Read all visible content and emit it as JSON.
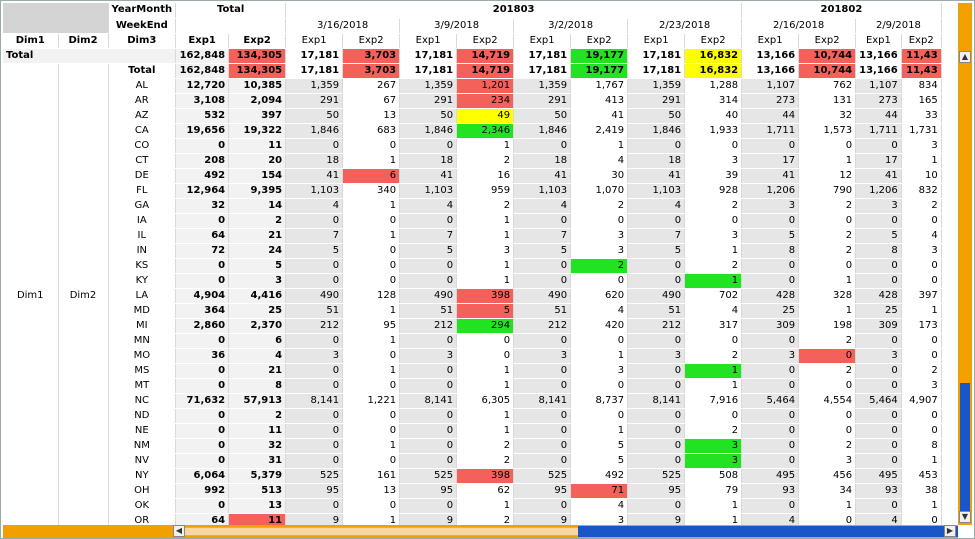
{
  "header": {
    "yearmonth_label": "YearMonth",
    "weekend_label": "WeekEnd",
    "total_label": "Total",
    "months": [
      "201803",
      "201802"
    ],
    "weeks": [
      "3/16/2018",
      "3/9/2018",
      "3/2/2018",
      "2/23/2018",
      "2/16/2018",
      "2/9/2018"
    ],
    "dim_cols": [
      "Dim1",
      "Dim2",
      "Dim3"
    ],
    "exp1": "Exp1",
    "exp2": "Exp2"
  },
  "left_labels": {
    "dim1": "Dim1",
    "dim2": "Dim2",
    "grand_total": "Total",
    "sub_total": "Total"
  },
  "totals_row": {
    "total_exp1": "162,848",
    "total_exp2": "134,305",
    "weeks": [
      [
        "17,181",
        "3,703"
      ],
      [
        "17,181",
        "14,719"
      ],
      [
        "17,181",
        "19,177"
      ],
      [
        "17,181",
        "16,832"
      ],
      [
        "13,166",
        "10,744"
      ],
      [
        "13,166",
        "11,43"
      ]
    ]
  },
  "rows": [
    {
      "state": "AL",
      "t1": "12,720",
      "t2": "10,385",
      "w": [
        [
          "1,359",
          "267"
        ],
        [
          "1,359",
          "1,201"
        ],
        [
          "1,359",
          "1,767"
        ],
        [
          "1,359",
          "1,288"
        ],
        [
          "1,107",
          "762"
        ],
        [
          "1,107",
          "834"
        ]
      ]
    },
    {
      "state": "AR",
      "t1": "3,108",
      "t2": "2,094",
      "w": [
        [
          "291",
          "67"
        ],
        [
          "291",
          "234"
        ],
        [
          "291",
          "413"
        ],
        [
          "291",
          "314"
        ],
        [
          "273",
          "131"
        ],
        [
          "273",
          "165"
        ]
      ]
    },
    {
      "state": "AZ",
      "t1": "532",
      "t2": "397",
      "w": [
        [
          "50",
          "13"
        ],
        [
          "50",
          "49"
        ],
        [
          "50",
          "41"
        ],
        [
          "50",
          "40"
        ],
        [
          "44",
          "32"
        ],
        [
          "44",
          "33"
        ]
      ]
    },
    {
      "state": "CA",
      "t1": "19,656",
      "t2": "19,322",
      "w": [
        [
          "1,846",
          "683"
        ],
        [
          "1,846",
          "2,346"
        ],
        [
          "1,846",
          "2,419"
        ],
        [
          "1,846",
          "1,933"
        ],
        [
          "1,711",
          "1,573"
        ],
        [
          "1,711",
          "1,731"
        ]
      ]
    },
    {
      "state": "CO",
      "t1": "0",
      "t2": "11",
      "w": [
        [
          "0",
          "0"
        ],
        [
          "0",
          "1"
        ],
        [
          "0",
          "1"
        ],
        [
          "0",
          "0"
        ],
        [
          "0",
          "0"
        ],
        [
          "0",
          "3"
        ]
      ]
    },
    {
      "state": "CT",
      "t1": "208",
      "t2": "20",
      "w": [
        [
          "18",
          "1"
        ],
        [
          "18",
          "2"
        ],
        [
          "18",
          "4"
        ],
        [
          "18",
          "3"
        ],
        [
          "17",
          "1"
        ],
        [
          "17",
          "1"
        ]
      ]
    },
    {
      "state": "DE",
      "t1": "492",
      "t2": "154",
      "w": [
        [
          "41",
          "6"
        ],
        [
          "41",
          "16"
        ],
        [
          "41",
          "30"
        ],
        [
          "41",
          "39"
        ],
        [
          "41",
          "12"
        ],
        [
          "41",
          "10"
        ]
      ]
    },
    {
      "state": "FL",
      "t1": "12,964",
      "t2": "9,395",
      "w": [
        [
          "1,103",
          "340"
        ],
        [
          "1,103",
          "959"
        ],
        [
          "1,103",
          "1,070"
        ],
        [
          "1,103",
          "928"
        ],
        [
          "1,206",
          "790"
        ],
        [
          "1,206",
          "832"
        ]
      ]
    },
    {
      "state": "GA",
      "t1": "32",
      "t2": "14",
      "w": [
        [
          "4",
          "1"
        ],
        [
          "4",
          "2"
        ],
        [
          "4",
          "2"
        ],
        [
          "4",
          "2"
        ],
        [
          "3",
          "2"
        ],
        [
          "3",
          "2"
        ]
      ]
    },
    {
      "state": "IA",
      "t1": "0",
      "t2": "2",
      "w": [
        [
          "0",
          "0"
        ],
        [
          "0",
          "1"
        ],
        [
          "0",
          "0"
        ],
        [
          "0",
          "0"
        ],
        [
          "0",
          "0"
        ],
        [
          "0",
          "0"
        ]
      ]
    },
    {
      "state": "IL",
      "t1": "64",
      "t2": "21",
      "w": [
        [
          "7",
          "1"
        ],
        [
          "7",
          "1"
        ],
        [
          "7",
          "3"
        ],
        [
          "7",
          "3"
        ],
        [
          "5",
          "2"
        ],
        [
          "5",
          "4"
        ]
      ]
    },
    {
      "state": "IN",
      "t1": "72",
      "t2": "24",
      "w": [
        [
          "5",
          "0"
        ],
        [
          "5",
          "3"
        ],
        [
          "5",
          "3"
        ],
        [
          "5",
          "1"
        ],
        [
          "8",
          "2"
        ],
        [
          "8",
          "3"
        ]
      ]
    },
    {
      "state": "KS",
      "t1": "0",
      "t2": "5",
      "w": [
        [
          "0",
          "0"
        ],
        [
          "0",
          "1"
        ],
        [
          "0",
          "2"
        ],
        [
          "0",
          "2"
        ],
        [
          "0",
          "0"
        ],
        [
          "0",
          "0"
        ]
      ]
    },
    {
      "state": "KY",
      "t1": "0",
      "t2": "3",
      "w": [
        [
          "0",
          "0"
        ],
        [
          "0",
          "1"
        ],
        [
          "0",
          "0"
        ],
        [
          "0",
          "1"
        ],
        [
          "0",
          "1"
        ],
        [
          "0",
          "0"
        ]
      ]
    },
    {
      "state": "LA",
      "t1": "4,904",
      "t2": "4,416",
      "w": [
        [
          "490",
          "128"
        ],
        [
          "490",
          "398"
        ],
        [
          "490",
          "620"
        ],
        [
          "490",
          "702"
        ],
        [
          "428",
          "328"
        ],
        [
          "428",
          "397"
        ]
      ]
    },
    {
      "state": "MD",
      "t1": "364",
      "t2": "25",
      "w": [
        [
          "51",
          "1"
        ],
        [
          "51",
          "5"
        ],
        [
          "51",
          "4"
        ],
        [
          "51",
          "4"
        ],
        [
          "25",
          "1"
        ],
        [
          "25",
          "1"
        ]
      ]
    },
    {
      "state": "MI",
      "t1": "2,860",
      "t2": "2,370",
      "w": [
        [
          "212",
          "95"
        ],
        [
          "212",
          "294"
        ],
        [
          "212",
          "420"
        ],
        [
          "212",
          "317"
        ],
        [
          "309",
          "198"
        ],
        [
          "309",
          "173"
        ]
      ]
    },
    {
      "state": "MN",
      "t1": "0",
      "t2": "6",
      "w": [
        [
          "0",
          "1"
        ],
        [
          "0",
          "0"
        ],
        [
          "0",
          "0"
        ],
        [
          "0",
          "0"
        ],
        [
          "0",
          "2"
        ],
        [
          "0",
          "0"
        ]
      ]
    },
    {
      "state": "MO",
      "t1": "36",
      "t2": "4",
      "w": [
        [
          "3",
          "0"
        ],
        [
          "3",
          "0"
        ],
        [
          "3",
          "1"
        ],
        [
          "3",
          "2"
        ],
        [
          "3",
          "0"
        ],
        [
          "3",
          "0"
        ]
      ]
    },
    {
      "state": "MS",
      "t1": "0",
      "t2": "21",
      "w": [
        [
          "0",
          "1"
        ],
        [
          "0",
          "1"
        ],
        [
          "0",
          "3"
        ],
        [
          "0",
          "1"
        ],
        [
          "0",
          "2"
        ],
        [
          "0",
          "2"
        ]
      ]
    },
    {
      "state": "MT",
      "t1": "0",
      "t2": "8",
      "w": [
        [
          "0",
          "0"
        ],
        [
          "0",
          "1"
        ],
        [
          "0",
          "0"
        ],
        [
          "0",
          "1"
        ],
        [
          "0",
          "0"
        ],
        [
          "0",
          "3"
        ]
      ]
    },
    {
      "state": "NC",
      "t1": "71,632",
      "t2": "57,913",
      "w": [
        [
          "8,141",
          "1,221"
        ],
        [
          "8,141",
          "6,305"
        ],
        [
          "8,141",
          "8,737"
        ],
        [
          "8,141",
          "7,916"
        ],
        [
          "5,464",
          "4,554"
        ],
        [
          "5,464",
          "4,907"
        ]
      ]
    },
    {
      "state": "ND",
      "t1": "0",
      "t2": "2",
      "w": [
        [
          "0",
          "0"
        ],
        [
          "0",
          "1"
        ],
        [
          "0",
          "0"
        ],
        [
          "0",
          "0"
        ],
        [
          "0",
          "0"
        ],
        [
          "0",
          "0"
        ]
      ]
    },
    {
      "state": "NE",
      "t1": "0",
      "t2": "11",
      "w": [
        [
          "0",
          "0"
        ],
        [
          "0",
          "1"
        ],
        [
          "0",
          "1"
        ],
        [
          "0",
          "2"
        ],
        [
          "0",
          "0"
        ],
        [
          "0",
          "0"
        ]
      ]
    },
    {
      "state": "NM",
      "t1": "0",
      "t2": "32",
      "w": [
        [
          "0",
          "1"
        ],
        [
          "0",
          "2"
        ],
        [
          "0",
          "5"
        ],
        [
          "0",
          "3"
        ],
        [
          "0",
          "2"
        ],
        [
          "0",
          "8"
        ]
      ]
    },
    {
      "state": "NV",
      "t1": "0",
      "t2": "31",
      "w": [
        [
          "0",
          "0"
        ],
        [
          "0",
          "2"
        ],
        [
          "0",
          "5"
        ],
        [
          "0",
          "3"
        ],
        [
          "0",
          "3"
        ],
        [
          "0",
          "1"
        ]
      ]
    },
    {
      "state": "NY",
      "t1": "6,064",
      "t2": "5,379",
      "w": [
        [
          "525",
          "161"
        ],
        [
          "525",
          "398"
        ],
        [
          "525",
          "492"
        ],
        [
          "525",
          "508"
        ],
        [
          "495",
          "456"
        ],
        [
          "495",
          "453"
        ]
      ]
    },
    {
      "state": "OH",
      "t1": "992",
      "t2": "513",
      "w": [
        [
          "95",
          "13"
        ],
        [
          "95",
          "62"
        ],
        [
          "95",
          "71"
        ],
        [
          "95",
          "79"
        ],
        [
          "93",
          "34"
        ],
        [
          "93",
          "38"
        ]
      ]
    },
    {
      "state": "OK",
      "t1": "0",
      "t2": "13",
      "w": [
        [
          "0",
          "0"
        ],
        [
          "0",
          "1"
        ],
        [
          "0",
          "4"
        ],
        [
          "0",
          "1"
        ],
        [
          "0",
          "1"
        ],
        [
          "0",
          "1"
        ]
      ]
    },
    {
      "state": "OR",
      "t1": "64",
      "t2": "11",
      "w": [
        [
          "9",
          "1"
        ],
        [
          "9",
          "2"
        ],
        [
          "9",
          "3"
        ],
        [
          "9",
          "1"
        ],
        [
          "4",
          "0"
        ],
        [
          "4",
          "0"
        ]
      ]
    }
  ],
  "highlights": {
    "red": "#f4605a",
    "yellow": "#ffff00",
    "green": "#22e322",
    "cells": {
      "total:t2": "red",
      "total:0:1": "red",
      "total:1:1": "red",
      "total:2:1": "green",
      "total:3:1": "yellow",
      "total:4:1": "red",
      "total:5:1": "red",
      "AL:1:1": "red",
      "AR:1:1": "red",
      "AZ:1:1": "yellow",
      "CA:1:1": "green",
      "DE:0:1": "red",
      "KS:2:1": "green",
      "KY:3:1": "green",
      "LA:1:1": "red",
      "MD:1:1": "red",
      "MI:1:1": "green",
      "MO:4:1": "red",
      "MS:3:1": "green",
      "NM:3:1": "green",
      "NV:3:1": "green",
      "NY:1:1": "red",
      "OH:2:1": "red",
      "OR:t2": "red"
    }
  }
}
